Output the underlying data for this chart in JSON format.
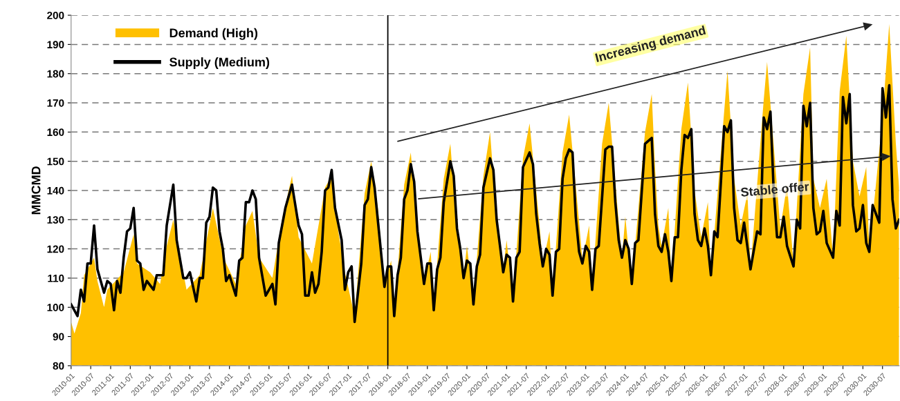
{
  "chart_data": {
    "type": "line",
    "ylabel": "MMCMD",
    "ylim": [
      80,
      200
    ],
    "yticks": [
      80,
      90,
      100,
      110,
      120,
      130,
      140,
      150,
      160,
      170,
      180,
      190,
      200
    ],
    "xlim": [
      "2010-01",
      "2030-12"
    ],
    "xticks": [
      "2010-01",
      "2010-07",
      "2011-01",
      "2011-07",
      "2012-01",
      "2012-07",
      "2013-01",
      "2013-07",
      "2014-01",
      "2014-07",
      "2015-01",
      "2015-07",
      "2016-01",
      "2016-07",
      "2017-01",
      "2017-07",
      "2018-01",
      "2018-07",
      "2019-01",
      "2019-07",
      "2020-01",
      "2020-07",
      "2021-01",
      "2021-07",
      "2022-01",
      "2022-07",
      "2023-01",
      "2023-07",
      "2024-01",
      "2024-07",
      "2025-01",
      "2025-07",
      "2026-01",
      "2026-07",
      "2027-01",
      "2027-07",
      "2028-01",
      "2028-07",
      "2029-01",
      "2029-07",
      "2030-01",
      "2030-07"
    ],
    "grid": "y",
    "legend": "top left",
    "ref_lines": [
      {
        "axis": "x",
        "value": "2018-01",
        "color": "#000000"
      }
    ],
    "annotations": [
      "Increasing demand",
      "Stable offer"
    ],
    "series": [
      {
        "name": "Demand (High)",
        "type": "area",
        "color": "#ffc000",
        "x": [
          "2010-01",
          "2010-02",
          "2010-04",
          "2010-05",
          "2010-08",
          "2010-09",
          "2010-11",
          "2010-12",
          "2011-05",
          "2011-08",
          "2011-09",
          "2012-01",
          "2012-04",
          "2012-06",
          "2012-08",
          "2012-12",
          "2013-04",
          "2013-08",
          "2013-11",
          "2013-12",
          "2014-03",
          "2014-06",
          "2014-08",
          "2014-10",
          "2015-02",
          "2015-05",
          "2015-08",
          "2015-10",
          "2016-02",
          "2016-06",
          "2016-08",
          "2016-10",
          "2016-12",
          "2017-03",
          "2017-06",
          "2017-08",
          "2017-10",
          "2017-12",
          "2018-02",
          "2018-03",
          "2018-06",
          "2018-08",
          "2018-10",
          "2018-12",
          "2019-02",
          "2019-03",
          "2019-06",
          "2019-08",
          "2019-10",
          "2019-12",
          "2020-01",
          "2020-03",
          "2020-06",
          "2020-08",
          "2020-10",
          "2020-12",
          "2021-01",
          "2021-03",
          "2021-06",
          "2021-08",
          "2021-11",
          "2021-12",
          "2022-02",
          "2022-03",
          "2022-06",
          "2022-08",
          "2022-11",
          "2022-12",
          "2023-02",
          "2023-03",
          "2023-06",
          "2023-08",
          "2023-11",
          "2023-12",
          "2024-01",
          "2024-03",
          "2024-07",
          "2024-09",
          "2024-10",
          "2024-11",
          "2024-12",
          "2025-02",
          "2025-03",
          "2025-06",
          "2025-08",
          "2025-10",
          "2025-12",
          "2026-02",
          "2026-03",
          "2026-07",
          "2026-08",
          "2026-10",
          "2026-12",
          "2027-02",
          "2027-03",
          "2027-07",
          "2027-08",
          "2027-12",
          "2028-02",
          "2028-04",
          "2028-07",
          "2028-09",
          "2028-10",
          "2028-12",
          "2029-02",
          "2029-04",
          "2029-06",
          "2029-08",
          "2029-10",
          "2029-12",
          "2030-02",
          "2030-03",
          "2030-07",
          "2030-09",
          "2030-11",
          "2030-12"
        ],
        "values": [
          95,
          91,
          98,
          111,
          117,
          109,
          100,
          106,
          112,
          125,
          115,
          112,
          108,
          121,
          130,
          106,
          111,
          134,
          118,
          115,
          108,
          128,
          133,
          117,
          110,
          130,
          145,
          124,
          115,
          141,
          145,
          126,
          112,
          97,
          139,
          150,
          134,
          108,
          116,
          97,
          142,
          153,
          126,
          109,
          119,
          100,
          144,
          156,
          126,
          111,
          121,
          102,
          145,
          160,
          130,
          113,
          123,
          102,
          151,
          163,
          128,
          115,
          126,
          104,
          153,
          166,
          129,
          116,
          128,
          106,
          156,
          170,
          129,
          117,
          131,
          108,
          160,
          173,
          148,
          128,
          121,
          134,
          109,
          161,
          177,
          140,
          124,
          136,
          111,
          167,
          181,
          144,
          128,
          139,
          113,
          171,
          184,
          127,
          142,
          115,
          173,
          189,
          144,
          134,
          144,
          117,
          174,
          193,
          150,
          138,
          148,
          119,
          165,
          197,
          156,
          141
        ]
      },
      {
        "name": "Supply (Medium)",
        "color": "#000000",
        "x": [
          "2010-01",
          "2010-03",
          "2010-04",
          "2010-05",
          "2010-06",
          "2010-07",
          "2010-08",
          "2010-09",
          "2010-11",
          "2010-12",
          "2011-01",
          "2011-02",
          "2011-03",
          "2011-04",
          "2011-05",
          "2011-06",
          "2011-07",
          "2011-08",
          "2011-09",
          "2011-10",
          "2011-11",
          "2011-12",
          "2012-02",
          "2012-03",
          "2012-05",
          "2012-06",
          "2012-08",
          "2012-09",
          "2012-11",
          "2012-12",
          "2013-01",
          "2013-03",
          "2013-04",
          "2013-05",
          "2013-06",
          "2013-07",
          "2013-08",
          "2013-09",
          "2013-10",
          "2013-11",
          "2013-12",
          "2014-01",
          "2014-03",
          "2014-04",
          "2014-05",
          "2014-06",
          "2014-07",
          "2014-08",
          "2014-09",
          "2014-10",
          "2014-12",
          "2015-02",
          "2015-03",
          "2015-04",
          "2015-06",
          "2015-08",
          "2015-10",
          "2015-11",
          "2015-12",
          "2016-01",
          "2016-02",
          "2016-03",
          "2016-04",
          "2016-05",
          "2016-06",
          "2016-07",
          "2016-08",
          "2016-09",
          "2016-11",
          "2016-12",
          "2017-01",
          "2017-02",
          "2017-03",
          "2017-05",
          "2017-06",
          "2017-07",
          "2017-08",
          "2017-09",
          "2017-12",
          "2018-01",
          "2018-02",
          "2018-03",
          "2018-04",
          "2018-05",
          "2018-06",
          "2018-07",
          "2018-08",
          "2018-09",
          "2018-10",
          "2018-11",
          "2018-12",
          "2019-01",
          "2019-02",
          "2019-03",
          "2019-04",
          "2019-05",
          "2019-06",
          "2019-08",
          "2019-09",
          "2019-10",
          "2019-11",
          "2019-12",
          "2020-01",
          "2020-02",
          "2020-03",
          "2020-04",
          "2020-05",
          "2020-06",
          "2020-08",
          "2020-09",
          "2020-10",
          "2020-11",
          "2020-12",
          "2021-01",
          "2021-02",
          "2021-03",
          "2021-04",
          "2021-05",
          "2021-06",
          "2021-08",
          "2021-09",
          "2021-10",
          "2021-11",
          "2021-12",
          "2022-01",
          "2022-02",
          "2022-03",
          "2022-04",
          "2022-05",
          "2022-06",
          "2022-07",
          "2022-08",
          "2022-09",
          "2022-10",
          "2022-11",
          "2022-12",
          "2023-01",
          "2023-02",
          "2023-03",
          "2023-04",
          "2023-05",
          "2023-07",
          "2023-08",
          "2023-09",
          "2023-10",
          "2023-11",
          "2023-12",
          "2024-01",
          "2024-02",
          "2024-03",
          "2024-04",
          "2024-05",
          "2024-07",
          "2024-09",
          "2024-10",
          "2024-11",
          "2024-12",
          "2025-01",
          "2025-02",
          "2025-03",
          "2025-04",
          "2025-05",
          "2025-06",
          "2025-07",
          "2025-08",
          "2025-09",
          "2025-10",
          "2025-11",
          "2025-12",
          "2026-01",
          "2026-02",
          "2026-03",
          "2026-04",
          "2026-05",
          "2026-06",
          "2026-07",
          "2026-08",
          "2026-09",
          "2026-10",
          "2026-11",
          "2026-12",
          "2027-01",
          "2027-03",
          "2027-05",
          "2027-06",
          "2027-07",
          "2027-08",
          "2027-09",
          "2027-10",
          "2027-11",
          "2027-12",
          "2028-01",
          "2028-02",
          "2028-04",
          "2028-05",
          "2028-06",
          "2028-07",
          "2028-08",
          "2028-09",
          "2028-10",
          "2028-11",
          "2028-12",
          "2029-01",
          "2029-02",
          "2029-04",
          "2029-05",
          "2029-06",
          "2029-07",
          "2029-08",
          "2029-09",
          "2029-10",
          "2029-11",
          "2029-12",
          "2030-01",
          "2030-02",
          "2030-03",
          "2030-04",
          "2030-06",
          "2030-07",
          "2030-08",
          "2030-09",
          "2030-10",
          "2030-11",
          "2030-12"
        ],
        "values": [
          101,
          97,
          106,
          102,
          115,
          115,
          128,
          113,
          105,
          109,
          108,
          99,
          109,
          105,
          117,
          126,
          127,
          134,
          116,
          115,
          106,
          109,
          106,
          111,
          111,
          128,
          142,
          123,
          110,
          110,
          112,
          102,
          110,
          110,
          129,
          131,
          141,
          140,
          126,
          120,
          109,
          111,
          104,
          116,
          117,
          136,
          136,
          140,
          137,
          117,
          104,
          108,
          101,
          122,
          134,
          142,
          128,
          125,
          104,
          104,
          112,
          105,
          108,
          119,
          140,
          141,
          147,
          134,
          123,
          106,
          112,
          114,
          95,
          115,
          135,
          137,
          148,
          141,
          107,
          114,
          114,
          97,
          111,
          117,
          137,
          140,
          149,
          143,
          126,
          117,
          108,
          115,
          115,
          99,
          113,
          117,
          136,
          150,
          145,
          127,
          120,
          110,
          116,
          115,
          101,
          114,
          118,
          141,
          151,
          147,
          130,
          121,
          112,
          118,
          117,
          102,
          117,
          119,
          148,
          153,
          149,
          132,
          122,
          114,
          120,
          118,
          104,
          119,
          120,
          144,
          151,
          154,
          153,
          131,
          119,
          115,
          121,
          119,
          106,
          120,
          121,
          154,
          155,
          155,
          136,
          123,
          117,
          123,
          120,
          108,
          122,
          123,
          156,
          158,
          132,
          121,
          119,
          125,
          119,
          109,
          124,
          124,
          147,
          159,
          158,
          161,
          132,
          123,
          121,
          127,
          121,
          111,
          126,
          124,
          143,
          162,
          160,
          164,
          134,
          123,
          122,
          129,
          113,
          126,
          125,
          165,
          161,
          167,
          140,
          124,
          124,
          131,
          121,
          114,
          130,
          127,
          169,
          162,
          170,
          134,
          125,
          126,
          133,
          122,
          117,
          133,
          128,
          172,
          163,
          173,
          135,
          126,
          127,
          135,
          122,
          119,
          135,
          129,
          175,
          165,
          176,
          137,
          127,
          130
        ]
      }
    ]
  }
}
